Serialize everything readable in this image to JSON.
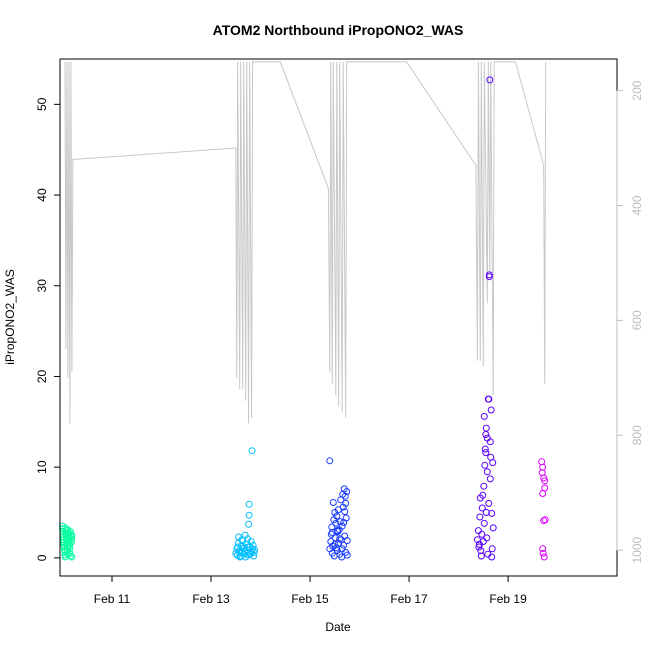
{
  "chart_data": {
    "type": "scatter",
    "title": "ATOM2 Northbound iPropONO2_WAS",
    "xlabel": "Date",
    "ylabel": "iPropONO2_WAS",
    "x_axis": {
      "unit": "day of February",
      "range": [
        9.95,
        21.2
      ],
      "ticks": [
        11,
        13,
        15,
        17,
        19
      ],
      "tick_labels": [
        "Feb 11",
        "Feb 13",
        "Feb 15",
        "Feb 17",
        "Feb 19"
      ]
    },
    "y_axis": {
      "range": [
        -2,
        55
      ],
      "ticks": [
        0,
        10,
        20,
        30,
        40,
        50
      ],
      "tick_labels": [
        "0",
        "10",
        "20",
        "30",
        "40",
        "50"
      ]
    },
    "y2_axis": {
      "range": [
        1045,
        145
      ],
      "ticks": [
        200,
        400,
        600,
        800,
        1000
      ],
      "tick_labels": [
        "200",
        "400",
        "600",
        "800",
        "1000"
      ],
      "color": "#bdbdbd"
    },
    "colors": {
      "pressure_line": "#c8c8c8",
      "flight1": "#00ffa0",
      "flight2": "#00bfff",
      "flight3": "#1a3cff",
      "flight4": "#5a00ff",
      "flight5": "#e000ff"
    },
    "pressure_trace": [
      [
        10.05,
        150
      ],
      [
        10.07,
        650
      ],
      [
        10.09,
        150
      ],
      [
        10.11,
        700
      ],
      [
        10.13,
        150
      ],
      [
        10.15,
        780
      ],
      [
        10.17,
        150
      ],
      [
        10.19,
        690
      ],
      [
        10.21,
        320
      ],
      [
        13.5,
        300
      ],
      [
        13.52,
        700
      ],
      [
        13.54,
        150
      ],
      [
        13.58,
        720
      ],
      [
        13.6,
        150
      ],
      [
        13.64,
        720
      ],
      [
        13.66,
        150
      ],
      [
        13.7,
        740
      ],
      [
        13.72,
        150
      ],
      [
        13.76,
        780
      ],
      [
        13.78,
        150
      ],
      [
        13.82,
        770
      ],
      [
        13.84,
        150
      ],
      [
        14.4,
        150
      ],
      [
        15.37,
        370
      ],
      [
        15.4,
        690
      ],
      [
        15.42,
        150
      ],
      [
        15.45,
        710
      ],
      [
        15.47,
        150
      ],
      [
        15.52,
        730
      ],
      [
        15.54,
        150
      ],
      [
        15.58,
        750
      ],
      [
        15.6,
        150
      ],
      [
        15.65,
        760
      ],
      [
        15.67,
        150
      ],
      [
        15.72,
        770
      ],
      [
        15.74,
        150
      ],
      [
        16.95,
        150
      ],
      [
        18.35,
        330
      ],
      [
        18.38,
        670
      ],
      [
        18.4,
        150
      ],
      [
        18.44,
        670
      ],
      [
        18.46,
        150
      ],
      [
        18.5,
        680
      ],
      [
        18.52,
        150
      ],
      [
        18.58,
        570
      ],
      [
        18.6,
        150
      ],
      [
        18.63,
        520
      ],
      [
        18.65,
        150
      ],
      [
        18.7,
        730
      ],
      [
        18.72,
        150
      ],
      [
        19.15,
        150
      ],
      [
        19.72,
        330
      ],
      [
        19.74,
        710
      ],
      [
        19.76,
        150
      ]
    ],
    "series": [
      {
        "color_key": "flight1",
        "points": [
          [
            10.0,
            3.5
          ],
          [
            10.0,
            3.2
          ],
          [
            10.01,
            2.9
          ],
          [
            10.01,
            2.6
          ],
          [
            10.02,
            2.3
          ],
          [
            10.02,
            2.0
          ],
          [
            10.03,
            1.7
          ],
          [
            10.03,
            1.4
          ],
          [
            10.04,
            1.2
          ],
          [
            10.04,
            0.9
          ],
          [
            10.05,
            0.6
          ],
          [
            10.05,
            0.3
          ],
          [
            10.06,
            0.1
          ],
          [
            10.06,
            3.3
          ],
          [
            10.07,
            3.0
          ],
          [
            10.07,
            2.7
          ],
          [
            10.08,
            2.4
          ],
          [
            10.08,
            2.1
          ],
          [
            10.09,
            1.8
          ],
          [
            10.09,
            1.5
          ],
          [
            10.1,
            1.2
          ],
          [
            10.1,
            0.8
          ],
          [
            10.11,
            0.4
          ],
          [
            10.11,
            3.1
          ],
          [
            10.12,
            2.8
          ],
          [
            10.12,
            2.5
          ],
          [
            10.13,
            2.2
          ],
          [
            10.13,
            1.9
          ],
          [
            10.14,
            1.6
          ],
          [
            10.14,
            1.3
          ],
          [
            10.15,
            1.0
          ],
          [
            10.15,
            0.5
          ],
          [
            10.16,
            0.2
          ],
          [
            10.16,
            2.9
          ],
          [
            10.17,
            2.6
          ],
          [
            10.17,
            2.3
          ],
          [
            10.18,
            2.0
          ],
          [
            10.18,
            1.7
          ],
          [
            10.19,
            0.1
          ],
          [
            10.19,
            2.4
          ]
        ]
      },
      {
        "color_key": "flight2",
        "points": [
          [
            13.5,
            0.5
          ],
          [
            13.52,
            1.0
          ],
          [
            13.53,
            0.3
          ],
          [
            13.55,
            1.6
          ],
          [
            13.56,
            2.3
          ],
          [
            13.58,
            0.8
          ],
          [
            13.6,
            0.2
          ],
          [
            13.61,
            1.3
          ],
          [
            13.63,
            0.6
          ],
          [
            13.64,
            1.9
          ],
          [
            13.66,
            0.4
          ],
          [
            13.67,
            1.1
          ],
          [
            13.69,
            2.5
          ],
          [
            13.7,
            0.1
          ],
          [
            13.72,
            0.9
          ],
          [
            13.73,
            1.5
          ],
          [
            13.75,
            0.3
          ],
          [
            13.76,
            3.7
          ],
          [
            13.77,
            4.7
          ],
          [
            13.77,
            5.9
          ],
          [
            13.78,
            1.2
          ],
          [
            13.8,
            0.5
          ],
          [
            13.81,
            1.8
          ],
          [
            13.82,
            0.7
          ],
          [
            13.83,
            11.8
          ],
          [
            13.84,
            1.0
          ],
          [
            13.86,
            0.2
          ],
          [
            13.87,
            0.6
          ],
          [
            13.57,
            0.6
          ],
          [
            13.62,
            2.0
          ],
          [
            13.68,
            0.7
          ],
          [
            13.74,
            1.2
          ],
          [
            13.79,
            0.4
          ],
          [
            13.85,
            1.4
          ],
          [
            13.54,
            1.2
          ],
          [
            13.59,
            0.1
          ],
          [
            13.65,
            1.0
          ],
          [
            13.71,
            0.5
          ],
          [
            13.74,
            2.1
          ],
          [
            13.88,
            0.9
          ]
        ]
      },
      {
        "color_key": "flight3",
        "points": [
          [
            15.4,
            10.7
          ],
          [
            15.4,
            1.0
          ],
          [
            15.42,
            1.8
          ],
          [
            15.43,
            2.6
          ],
          [
            15.44,
            3.4
          ],
          [
            15.45,
            0.5
          ],
          [
            15.46,
            1.3
          ],
          [
            15.47,
            6.1
          ],
          [
            15.48,
            4.2
          ],
          [
            15.49,
            0.2
          ],
          [
            15.5,
            5.0
          ],
          [
            15.51,
            2.2
          ],
          [
            15.52,
            3.8
          ],
          [
            15.53,
            1.1
          ],
          [
            15.54,
            4.6
          ],
          [
            15.55,
            0.8
          ],
          [
            15.56,
            2.9
          ],
          [
            15.57,
            5.3
          ],
          [
            15.58,
            1.6
          ],
          [
            15.59,
            3.1
          ],
          [
            15.6,
            0.4
          ],
          [
            15.61,
            4.0
          ],
          [
            15.62,
            6.4
          ],
          [
            15.63,
            2.0
          ],
          [
            15.64,
            0.1
          ],
          [
            15.65,
            3.5
          ],
          [
            15.66,
            7.0
          ],
          [
            15.67,
            5.6
          ],
          [
            15.68,
            1.4
          ],
          [
            15.69,
            7.6
          ],
          [
            15.7,
            2.4
          ],
          [
            15.71,
            6.8
          ],
          [
            15.72,
            0.6
          ],
          [
            15.73,
            4.4
          ],
          [
            15.74,
            7.3
          ],
          [
            15.75,
            1.9
          ],
          [
            15.45,
            2.8
          ],
          [
            15.5,
            1.5
          ],
          [
            15.55,
            3.0
          ],
          [
            15.6,
            2.1
          ],
          [
            15.65,
            1.0
          ],
          [
            15.7,
            5.1
          ],
          [
            15.75,
            0.3
          ],
          [
            15.72,
            6.0
          ],
          [
            15.68,
            3.9
          ]
        ]
      },
      {
        "color_key": "flight4",
        "points": [
          [
            18.38,
            2.0
          ],
          [
            18.4,
            3.0
          ],
          [
            18.41,
            1.2
          ],
          [
            18.43,
            4.5
          ],
          [
            18.44,
            6.6
          ],
          [
            18.45,
            0.8
          ],
          [
            18.47,
            2.6
          ],
          [
            18.48,
            5.5
          ],
          [
            18.5,
            1.8
          ],
          [
            18.51,
            7.9
          ],
          [
            18.52,
            3.8
          ],
          [
            18.53,
            10.2
          ],
          [
            18.54,
            12.0
          ],
          [
            18.55,
            13.6
          ],
          [
            18.56,
            14.3
          ],
          [
            18.57,
            2.2
          ],
          [
            18.58,
            9.5
          ],
          [
            18.59,
            0.4
          ],
          [
            18.6,
            17.5
          ],
          [
            18.61,
            6.0
          ],
          [
            18.62,
            31.0
          ],
          [
            18.62,
            31.2
          ],
          [
            18.63,
            52.7
          ],
          [
            18.64,
            8.7
          ],
          [
            18.65,
            11.1
          ],
          [
            18.66,
            16.3
          ],
          [
            18.67,
            4.9
          ],
          [
            18.68,
            1.0
          ],
          [
            18.69,
            10.5
          ],
          [
            18.7,
            3.3
          ],
          [
            18.46,
            0.2
          ],
          [
            18.49,
            6.9
          ],
          [
            18.52,
            15.6
          ],
          [
            18.55,
            11.6
          ],
          [
            18.58,
            13.2
          ],
          [
            18.61,
            17.5
          ],
          [
            18.64,
            12.8
          ],
          [
            18.67,
            0.1
          ],
          [
            18.42,
            1.5
          ],
          [
            18.56,
            5.0
          ]
        ]
      },
      {
        "color_key": "flight5",
        "points": [
          [
            19.68,
            10.6
          ],
          [
            19.7,
            10.0
          ],
          [
            19.72,
            8.8
          ],
          [
            19.74,
            7.7
          ],
          [
            19.7,
            7.1
          ],
          [
            19.72,
            4.1
          ],
          [
            19.7,
            1.0
          ],
          [
            19.71,
            0.5
          ],
          [
            19.73,
            0.1
          ],
          [
            19.74,
            8.5
          ],
          [
            19.69,
            9.4
          ],
          [
            19.75,
            4.2
          ]
        ]
      }
    ]
  }
}
